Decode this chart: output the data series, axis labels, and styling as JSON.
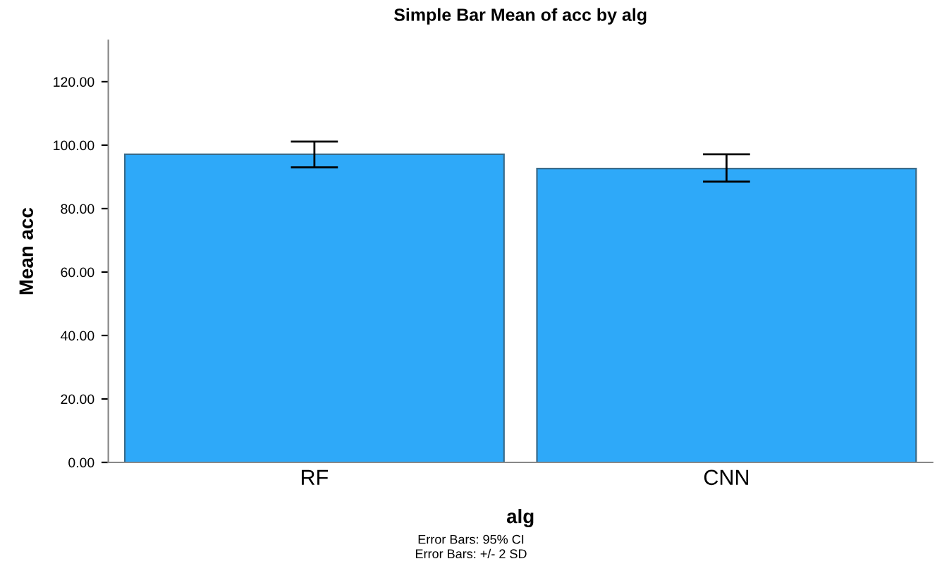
{
  "chart_data": {
    "type": "bar",
    "title": "Simple Bar Mean of acc by alg",
    "xlabel": "alg",
    "ylabel": "Mean acc",
    "categories": [
      "RF",
      "CNN"
    ],
    "values": [
      97.1,
      92.6
    ],
    "errors": [
      [
        93.0,
        101.1
      ],
      [
        88.5,
        97.1
      ]
    ],
    "color": "#2ea9f9",
    "ylim": [
      0,
      133
    ],
    "yticks": [
      {
        "value": 0,
        "label": "0.00"
      },
      {
        "value": 20,
        "label": "20.00"
      },
      {
        "value": 40,
        "label": "40.00"
      },
      {
        "value": 60,
        "label": "60.00"
      },
      {
        "value": 80,
        "label": "80.00"
      },
      {
        "value": 100,
        "label": "100.00"
      },
      {
        "value": 120,
        "label": "120.00"
      }
    ],
    "grid": false,
    "annotations": [
      "Error Bars: 95% CI",
      "Error Bars: +/- 2 SD"
    ]
  }
}
